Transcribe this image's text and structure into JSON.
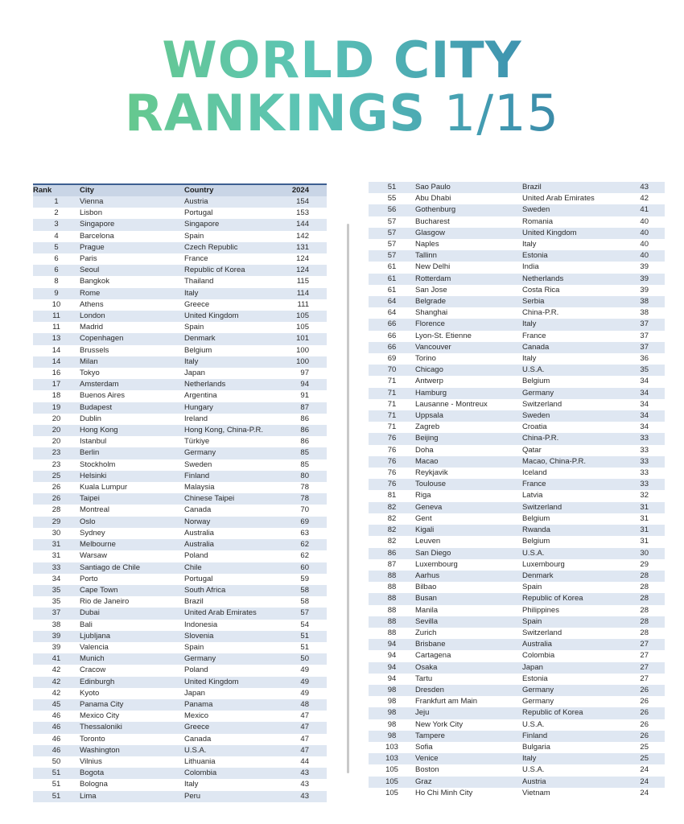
{
  "title_line1": "WORLD CITY",
  "title_line2": "RANKINGS",
  "page_indicator": "1/15",
  "table": {
    "headers": {
      "rank": "Rank",
      "city": "City",
      "country": "Country",
      "year": "2024"
    },
    "left_rows": [
      [
        "1",
        "Vienna",
        "Austria",
        "154"
      ],
      [
        "2",
        "Lisbon",
        "Portugal",
        "153"
      ],
      [
        "3",
        "Singapore",
        "Singapore",
        "144"
      ],
      [
        "4",
        "Barcelona",
        "Spain",
        "142"
      ],
      [
        "5",
        "Prague",
        "Czech Republic",
        "131"
      ],
      [
        "6",
        "Paris",
        "France",
        "124"
      ],
      [
        "6",
        "Seoul",
        "Republic of Korea",
        "124"
      ],
      [
        "8",
        "Bangkok",
        "Thailand",
        "115"
      ],
      [
        "9",
        "Rome",
        "Italy",
        "114"
      ],
      [
        "10",
        "Athens",
        "Greece",
        "111"
      ],
      [
        "11",
        "London",
        "United Kingdom",
        "105"
      ],
      [
        "11",
        "Madrid",
        "Spain",
        "105"
      ],
      [
        "13",
        "Copenhagen",
        "Denmark",
        "101"
      ],
      [
        "14",
        "Brussels",
        "Belgium",
        "100"
      ],
      [
        "14",
        "Milan",
        "Italy",
        "100"
      ],
      [
        "16",
        "Tokyo",
        "Japan",
        "97"
      ],
      [
        "17",
        "Amsterdam",
        "Netherlands",
        "94"
      ],
      [
        "18",
        "Buenos Aires",
        "Argentina",
        "91"
      ],
      [
        "19",
        "Budapest",
        "Hungary",
        "87"
      ],
      [
        "20",
        "Dublin",
        "Ireland",
        "86"
      ],
      [
        "20",
        "Hong Kong",
        "Hong Kong, China-P.R.",
        "86"
      ],
      [
        "20",
        "Istanbul",
        "Türkiye",
        "86"
      ],
      [
        "23",
        "Berlin",
        "Germany",
        "85"
      ],
      [
        "23",
        "Stockholm",
        "Sweden",
        "85"
      ],
      [
        "25",
        "Helsinki",
        "Finland",
        "80"
      ],
      [
        "26",
        "Kuala Lumpur",
        "Malaysia",
        "78"
      ],
      [
        "26",
        "Taipei",
        "Chinese Taipei",
        "78"
      ],
      [
        "28",
        "Montreal",
        "Canada",
        "70"
      ],
      [
        "29",
        "Oslo",
        "Norway",
        "69"
      ],
      [
        "30",
        "Sydney",
        "Australia",
        "63"
      ],
      [
        "31",
        "Melbourne",
        "Australia",
        "62"
      ],
      [
        "31",
        "Warsaw",
        "Poland",
        "62"
      ],
      [
        "33",
        "Santiago de Chile",
        "Chile",
        "60"
      ],
      [
        "34",
        "Porto",
        "Portugal",
        "59"
      ],
      [
        "35",
        "Cape Town",
        "South Africa",
        "58"
      ],
      [
        "35",
        "Rio de Janeiro",
        "Brazil",
        "58"
      ],
      [
        "37",
        "Dubai",
        "United Arab Emirates",
        "57"
      ],
      [
        "38",
        "Bali",
        "Indonesia",
        "54"
      ],
      [
        "39",
        "Ljubljana",
        "Slovenia",
        "51"
      ],
      [
        "39",
        "Valencia",
        "Spain",
        "51"
      ],
      [
        "41",
        "Munich",
        "Germany",
        "50"
      ],
      [
        "42",
        "Cracow",
        "Poland",
        "49"
      ],
      [
        "42",
        "Edinburgh",
        "United Kingdom",
        "49"
      ],
      [
        "42",
        "Kyoto",
        "Japan",
        "49"
      ],
      [
        "45",
        "Panama City",
        "Panama",
        "48"
      ],
      [
        "46",
        "Mexico City",
        "Mexico",
        "47"
      ],
      [
        "46",
        "Thessaloniki",
        "Greece",
        "47"
      ],
      [
        "46",
        "Toronto",
        "Canada",
        "47"
      ],
      [
        "46",
        "Washington",
        "U.S.A.",
        "47"
      ],
      [
        "50",
        "Vilnius",
        "Lithuania",
        "44"
      ],
      [
        "51",
        "Bogota",
        "Colombia",
        "43"
      ],
      [
        "51",
        "Bologna",
        "Italy",
        "43"
      ],
      [
        "51",
        "Lima",
        "Peru",
        "43"
      ]
    ],
    "right_rows": [
      [
        "51",
        "Sao Paulo",
        "Brazil",
        "43"
      ],
      [
        "55",
        "Abu Dhabi",
        "United Arab Emirates",
        "42"
      ],
      [
        "56",
        "Gothenburg",
        "Sweden",
        "41"
      ],
      [
        "57",
        "Bucharest",
        "Romania",
        "40"
      ],
      [
        "57",
        "Glasgow",
        "United Kingdom",
        "40"
      ],
      [
        "57",
        "Naples",
        "Italy",
        "40"
      ],
      [
        "57",
        "Tallinn",
        "Estonia",
        "40"
      ],
      [
        "61",
        "New Delhi",
        "India",
        "39"
      ],
      [
        "61",
        "Rotterdam",
        "Netherlands",
        "39"
      ],
      [
        "61",
        "San Jose",
        "Costa Rica",
        "39"
      ],
      [
        "64",
        "Belgrade",
        "Serbia",
        "38"
      ],
      [
        "64",
        "Shanghai",
        "China-P.R.",
        "38"
      ],
      [
        "66",
        "Florence",
        "Italy",
        "37"
      ],
      [
        "66",
        "Lyon-St. Etienne",
        "France",
        "37"
      ],
      [
        "66",
        "Vancouver",
        "Canada",
        "37"
      ],
      [
        "69",
        "Torino",
        "Italy",
        "36"
      ],
      [
        "70",
        "Chicago",
        "U.S.A.",
        "35"
      ],
      [
        "71",
        "Antwerp",
        "Belgium",
        "34"
      ],
      [
        "71",
        "Hamburg",
        "Germany",
        "34"
      ],
      [
        "71",
        "Lausanne - Montreux",
        "Switzerland",
        "34"
      ],
      [
        "71",
        "Uppsala",
        "Sweden",
        "34"
      ],
      [
        "71",
        "Zagreb",
        "Croatia",
        "34"
      ],
      [
        "76",
        "Beijing",
        "China-P.R.",
        "33"
      ],
      [
        "76",
        "Doha",
        "Qatar",
        "33"
      ],
      [
        "76",
        "Macao",
        "Macao, China-P.R.",
        "33"
      ],
      [
        "76",
        "Reykjavik",
        "Iceland",
        "33"
      ],
      [
        "76",
        "Toulouse",
        "France",
        "33"
      ],
      [
        "81",
        "Riga",
        "Latvia",
        "32"
      ],
      [
        "82",
        "Geneva",
        "Switzerland",
        "31"
      ],
      [
        "82",
        "Gent",
        "Belgium",
        "31"
      ],
      [
        "82",
        "Kigali",
        "Rwanda",
        "31"
      ],
      [
        "82",
        "Leuven",
        "Belgium",
        "31"
      ],
      [
        "86",
        "San Diego",
        "U.S.A.",
        "30"
      ],
      [
        "87",
        "Luxembourg",
        "Luxembourg",
        "29"
      ],
      [
        "88",
        "Aarhus",
        "Denmark",
        "28"
      ],
      [
        "88",
        "Bilbao",
        "Spain",
        "28"
      ],
      [
        "88",
        "Busan",
        "Republic of Korea",
        "28"
      ],
      [
        "88",
        "Manila",
        "Philippines",
        "28"
      ],
      [
        "88",
        "Sevilla",
        "Spain",
        "28"
      ],
      [
        "88",
        "Zurich",
        "Switzerland",
        "28"
      ],
      [
        "94",
        "Brisbane",
        "Australia",
        "27"
      ],
      [
        "94",
        "Cartagena",
        "Colombia",
        "27"
      ],
      [
        "94",
        "Osaka",
        "Japan",
        "27"
      ],
      [
        "94",
        "Tartu",
        "Estonia",
        "27"
      ],
      [
        "98",
        "Dresden",
        "Germany",
        "26"
      ],
      [
        "98",
        "Frankfurt am Main",
        "Germany",
        "26"
      ],
      [
        "98",
        "Jeju",
        "Republic of Korea",
        "26"
      ],
      [
        "98",
        "New York City",
        "U.S.A.",
        "26"
      ],
      [
        "98",
        "Tampere",
        "Finland",
        "26"
      ],
      [
        "103",
        "Sofia",
        "Bulgaria",
        "25"
      ],
      [
        "103",
        "Venice",
        "Italy",
        "25"
      ],
      [
        "105",
        "Boston",
        "U.S.A.",
        "24"
      ],
      [
        "105",
        "Graz",
        "Austria",
        "24"
      ],
      [
        "105",
        "Ho Chi Minh City",
        "Vietnam",
        "24"
      ]
    ]
  }
}
